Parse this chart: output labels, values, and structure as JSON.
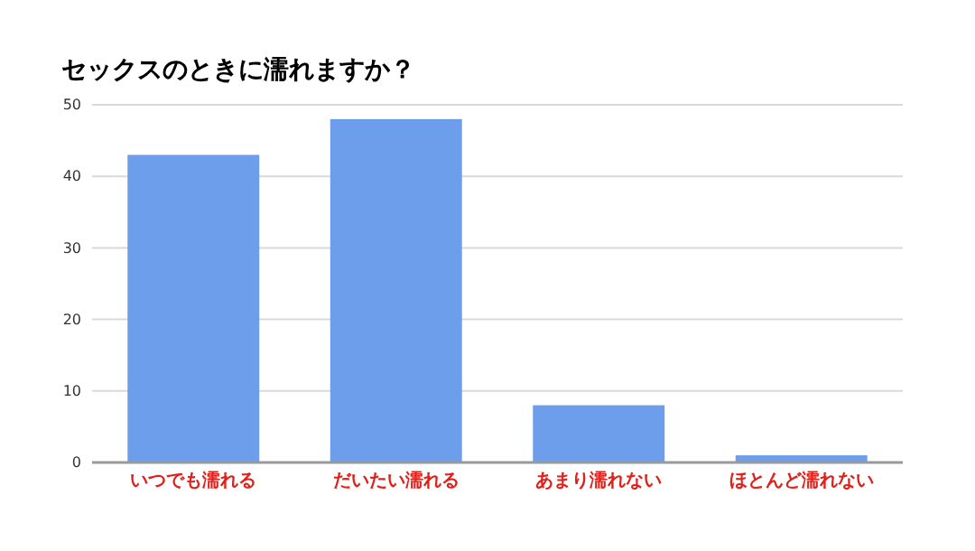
{
  "chart_data": {
    "type": "bar",
    "title": "セックスのときに濡れますか？",
    "categories": [
      "いつでも濡れる",
      "だいたい濡れる",
      "あまり濡れない",
      "ほとんど濡れない"
    ],
    "values": [
      43,
      48,
      8,
      1
    ],
    "color": "#6d9eeb",
    "ylim": [
      0,
      50
    ],
    "yticks": [
      0,
      10,
      20,
      30,
      40,
      50
    ],
    "grid": "y"
  }
}
